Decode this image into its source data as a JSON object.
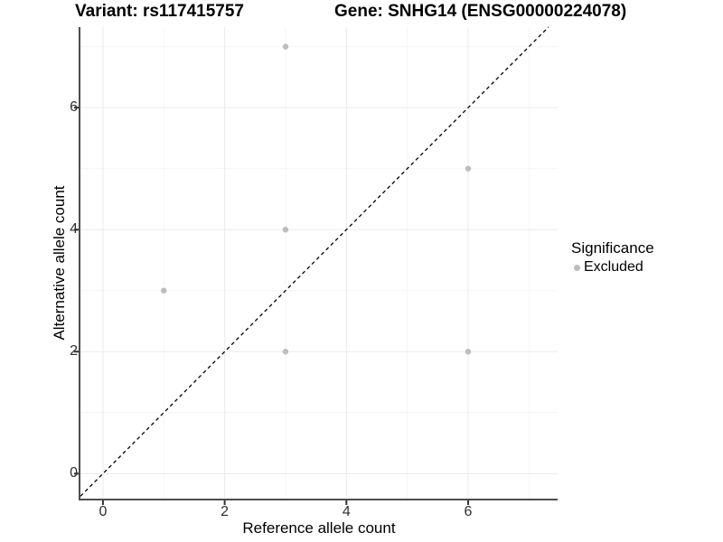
{
  "titles": {
    "variant": "Variant: rs117415757",
    "gene": "Gene: SNHG14 (ENSG00000224078)"
  },
  "chart_data": {
    "type": "scatter",
    "title_left": "Variant: rs117415757",
    "title_right": "Gene: SNHG14 (ENSG00000224078)",
    "xlabel": "Reference allele count",
    "ylabel": "Alternative allele count",
    "xlim": [
      -0.37,
      7.47
    ],
    "ylim": [
      -0.41,
      7.32
    ],
    "x_ticks": [
      0,
      2,
      4,
      6
    ],
    "y_ticks": [
      0,
      2,
      4,
      6
    ],
    "x_minor_gridlines": [
      1,
      3,
      5,
      7
    ],
    "y_minor_gridlines": [
      1,
      3,
      5,
      7
    ],
    "grid": true,
    "series": [
      {
        "name": "Excluded",
        "color": "#BDBDBD",
        "points": [
          {
            "x": 3,
            "y": 7
          },
          {
            "x": 6,
            "y": 5
          },
          {
            "x": 3,
            "y": 4
          },
          {
            "x": 1,
            "y": 3
          },
          {
            "x": 3,
            "y": 2
          },
          {
            "x": 6,
            "y": 2
          }
        ]
      }
    ],
    "reference_line": {
      "equation": "y = x",
      "style": "dashed",
      "color": "#000000"
    },
    "legend": {
      "position": "right",
      "title": "Significance",
      "entries": [
        {
          "label": "Excluded",
          "color": "#BDBDBD"
        }
      ]
    },
    "colors": {
      "grid_major": "#EBEBEB",
      "grid_minor": "#F5F5F5",
      "axis_line": "#4D4D4D",
      "tick_mark": "#333333",
      "point": "#BDBDBD",
      "background": "#FFFFFF"
    }
  }
}
